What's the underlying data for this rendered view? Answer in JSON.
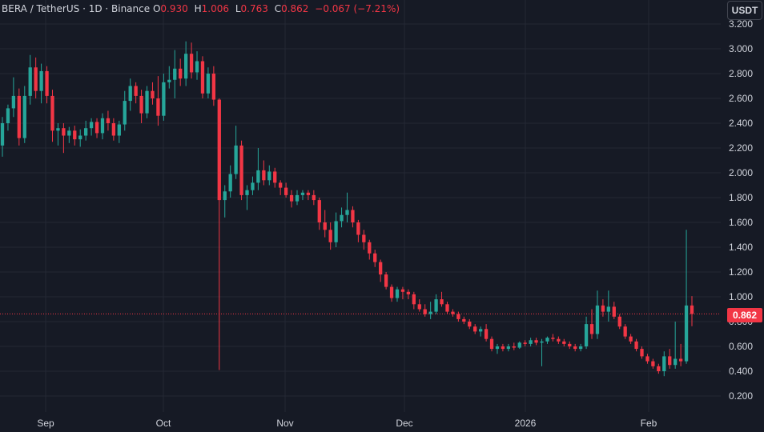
{
  "legend": {
    "symbol": "BERA / TetherUS · 1D · Binance",
    "open_label": "O",
    "open": "0.930",
    "high_label": "H",
    "high": "1.006",
    "low_label": "L",
    "low": "0.763",
    "close_label": "C",
    "close": "0.862",
    "change": "−0.067 (−7.21%)"
  },
  "currency": "USDT",
  "last_price": "0.862",
  "colors": {
    "up": "#26a69a",
    "down": "#f23645",
    "background": "#161a25",
    "grid": "#242833",
    "text": "#d1d4dc"
  },
  "chart_data": {
    "type": "candlestick",
    "y_ticks": [
      "0.200",
      "0.400",
      "0.600",
      "0.800",
      "1.000",
      "1.200",
      "1.400",
      "1.600",
      "1.800",
      "2.000",
      "2.200",
      "2.400",
      "2.600",
      "2.800",
      "3.000",
      "3.200"
    ],
    "x_ticks": [
      "Sep",
      "Oct",
      "Nov",
      "Dec",
      "2026",
      "Feb"
    ],
    "ylim": [
      0.1,
      3.23
    ],
    "grid": true,
    "last_price": 0.862,
    "ohlc": [
      [
        2.22,
        2.45,
        2.13,
        2.4
      ],
      [
        2.4,
        2.55,
        2.34,
        2.52
      ],
      [
        2.52,
        2.77,
        2.45,
        2.62
      ],
      [
        2.62,
        2.68,
        2.22,
        2.28
      ],
      [
        2.28,
        2.7,
        2.24,
        2.62
      ],
      [
        2.62,
        2.95,
        2.55,
        2.85
      ],
      [
        2.85,
        2.93,
        2.6,
        2.66
      ],
      [
        2.66,
        2.88,
        2.56,
        2.82
      ],
      [
        2.82,
        2.86,
        2.56,
        2.62
      ],
      [
        2.62,
        2.67,
        2.25,
        2.34
      ],
      [
        2.34,
        2.4,
        2.22,
        2.36
      ],
      [
        2.36,
        2.4,
        2.16,
        2.3
      ],
      [
        2.3,
        2.37,
        2.24,
        2.34
      ],
      [
        2.34,
        2.38,
        2.22,
        2.27
      ],
      [
        2.27,
        2.35,
        2.21,
        2.3
      ],
      [
        2.3,
        2.42,
        2.26,
        2.36
      ],
      [
        2.36,
        2.44,
        2.3,
        2.41
      ],
      [
        2.41,
        2.44,
        2.28,
        2.32
      ],
      [
        2.32,
        2.48,
        2.27,
        2.44
      ],
      [
        2.44,
        2.5,
        2.34,
        2.4
      ],
      [
        2.4,
        2.44,
        2.26,
        2.3
      ],
      [
        2.3,
        2.42,
        2.24,
        2.39
      ],
      [
        2.39,
        2.66,
        2.34,
        2.58
      ],
      [
        2.58,
        2.76,
        2.5,
        2.7
      ],
      [
        2.7,
        2.73,
        2.56,
        2.62
      ],
      [
        2.62,
        2.67,
        2.4,
        2.48
      ],
      [
        2.48,
        2.7,
        2.44,
        2.66
      ],
      [
        2.66,
        2.73,
        2.55,
        2.6
      ],
      [
        2.6,
        2.78,
        2.38,
        2.46
      ],
      [
        2.46,
        2.8,
        2.42,
        2.73
      ],
      [
        2.73,
        2.86,
        2.68,
        2.75
      ],
      [
        2.75,
        2.99,
        2.6,
        2.84
      ],
      [
        2.84,
        2.92,
        2.7,
        2.76
      ],
      [
        2.76,
        3.06,
        2.7,
        2.96
      ],
      [
        2.96,
        3.05,
        2.76,
        2.81
      ],
      [
        2.81,
        2.98,
        2.75,
        2.9
      ],
      [
        2.9,
        2.94,
        2.6,
        2.64
      ],
      [
        2.64,
        2.85,
        2.6,
        2.8
      ],
      [
        2.8,
        2.86,
        2.54,
        2.59
      ],
      [
        2.59,
        2.6,
        0.41,
        1.78
      ],
      [
        1.78,
        1.9,
        1.64,
        1.85
      ],
      [
        1.85,
        2.06,
        1.8,
        1.99
      ],
      [
        1.99,
        2.38,
        1.95,
        2.22
      ],
      [
        2.22,
        2.26,
        1.78,
        1.82
      ],
      [
        1.82,
        1.9,
        1.7,
        1.86
      ],
      [
        1.86,
        1.97,
        1.82,
        1.92
      ],
      [
        1.92,
        2.2,
        1.86,
        2.02
      ],
      [
        2.02,
        2.1,
        1.9,
        1.94
      ],
      [
        1.94,
        2.06,
        1.9,
        2.01
      ],
      [
        2.01,
        2.04,
        1.88,
        1.92
      ],
      [
        1.92,
        1.94,
        1.82,
        1.88
      ],
      [
        1.88,
        1.92,
        1.8,
        1.82
      ],
      [
        1.82,
        1.86,
        1.72,
        1.77
      ],
      [
        1.77,
        1.86,
        1.74,
        1.82
      ],
      [
        1.82,
        1.86,
        1.78,
        1.84
      ],
      [
        1.84,
        1.86,
        1.78,
        1.82
      ],
      [
        1.82,
        1.86,
        1.74,
        1.78
      ],
      [
        1.78,
        1.8,
        1.54,
        1.6
      ],
      [
        1.6,
        1.7,
        1.48,
        1.54
      ],
      [
        1.54,
        1.6,
        1.38,
        1.44
      ],
      [
        1.44,
        1.68,
        1.4,
        1.61
      ],
      [
        1.61,
        1.72,
        1.56,
        1.66
      ],
      [
        1.66,
        1.84,
        1.6,
        1.7
      ],
      [
        1.7,
        1.73,
        1.56,
        1.6
      ],
      [
        1.6,
        1.62,
        1.44,
        1.5
      ],
      [
        1.5,
        1.54,
        1.38,
        1.44
      ],
      [
        1.44,
        1.46,
        1.3,
        1.35
      ],
      [
        1.35,
        1.38,
        1.24,
        1.28
      ],
      [
        1.28,
        1.3,
        1.12,
        1.18
      ],
      [
        1.18,
        1.2,
        1.06,
        1.08
      ],
      [
        1.08,
        1.1,
        0.96,
        0.99
      ],
      [
        0.99,
        1.08,
        0.96,
        1.06
      ],
      [
        1.06,
        1.08,
        0.98,
        1.04
      ],
      [
        1.04,
        1.06,
        0.98,
        1.02
      ],
      [
        1.02,
        1.04,
        0.9,
        0.94
      ],
      [
        0.94,
        0.98,
        0.88,
        0.9
      ],
      [
        0.9,
        0.94,
        0.84,
        0.86
      ],
      [
        0.86,
        0.96,
        0.82,
        0.88
      ],
      [
        0.88,
        1.02,
        0.86,
        0.98
      ],
      [
        0.98,
        1.04,
        0.92,
        0.94
      ],
      [
        0.94,
        0.96,
        0.86,
        0.88
      ],
      [
        0.88,
        0.9,
        0.84,
        0.86
      ],
      [
        0.86,
        0.88,
        0.8,
        0.82
      ],
      [
        0.82,
        0.84,
        0.78,
        0.8
      ],
      [
        0.8,
        0.82,
        0.74,
        0.76
      ],
      [
        0.76,
        0.78,
        0.7,
        0.72
      ],
      [
        0.72,
        0.76,
        0.68,
        0.74
      ],
      [
        0.74,
        0.78,
        0.64,
        0.66
      ],
      [
        0.66,
        0.68,
        0.56,
        0.58
      ],
      [
        0.58,
        0.62,
        0.54,
        0.6
      ],
      [
        0.6,
        0.62,
        0.56,
        0.58
      ],
      [
        0.58,
        0.62,
        0.56,
        0.6
      ],
      [
        0.6,
        0.63,
        0.57,
        0.59
      ],
      [
        0.59,
        0.64,
        0.58,
        0.63
      ],
      [
        0.63,
        0.65,
        0.6,
        0.62
      ],
      [
        0.62,
        0.67,
        0.6,
        0.65
      ],
      [
        0.65,
        0.67,
        0.61,
        0.63
      ],
      [
        0.63,
        0.66,
        0.44,
        0.64
      ],
      [
        0.64,
        0.68,
        0.62,
        0.67
      ],
      [
        0.67,
        0.7,
        0.64,
        0.66
      ],
      [
        0.66,
        0.68,
        0.62,
        0.64
      ],
      [
        0.64,
        0.66,
        0.6,
        0.62
      ],
      [
        0.62,
        0.64,
        0.58,
        0.6
      ],
      [
        0.6,
        0.62,
        0.56,
        0.58
      ],
      [
        0.58,
        0.62,
        0.56,
        0.6
      ],
      [
        0.6,
        0.84,
        0.58,
        0.78
      ],
      [
        0.78,
        0.9,
        0.66,
        0.7
      ],
      [
        0.7,
        1.05,
        0.66,
        0.93
      ],
      [
        0.93,
        0.98,
        0.84,
        0.88
      ],
      [
        0.88,
        1.05,
        0.8,
        0.92
      ],
      [
        0.92,
        0.96,
        0.82,
        0.84
      ],
      [
        0.84,
        0.86,
        0.74,
        0.76
      ],
      [
        0.76,
        0.78,
        0.66,
        0.68
      ],
      [
        0.68,
        0.7,
        0.62,
        0.64
      ],
      [
        0.64,
        0.66,
        0.56,
        0.58
      ],
      [
        0.58,
        0.6,
        0.5,
        0.52
      ],
      [
        0.52,
        0.54,
        0.46,
        0.48
      ],
      [
        0.48,
        0.5,
        0.42,
        0.44
      ],
      [
        0.44,
        0.46,
        0.38,
        0.4
      ],
      [
        0.4,
        0.56,
        0.36,
        0.52
      ],
      [
        0.52,
        0.58,
        0.42,
        0.45
      ],
      [
        0.45,
        0.8,
        0.42,
        0.5
      ],
      [
        0.5,
        0.62,
        0.44,
        0.48
      ],
      [
        0.48,
        1.54,
        0.46,
        0.93
      ],
      [
        0.93,
        1.006,
        0.763,
        0.862
      ]
    ]
  }
}
